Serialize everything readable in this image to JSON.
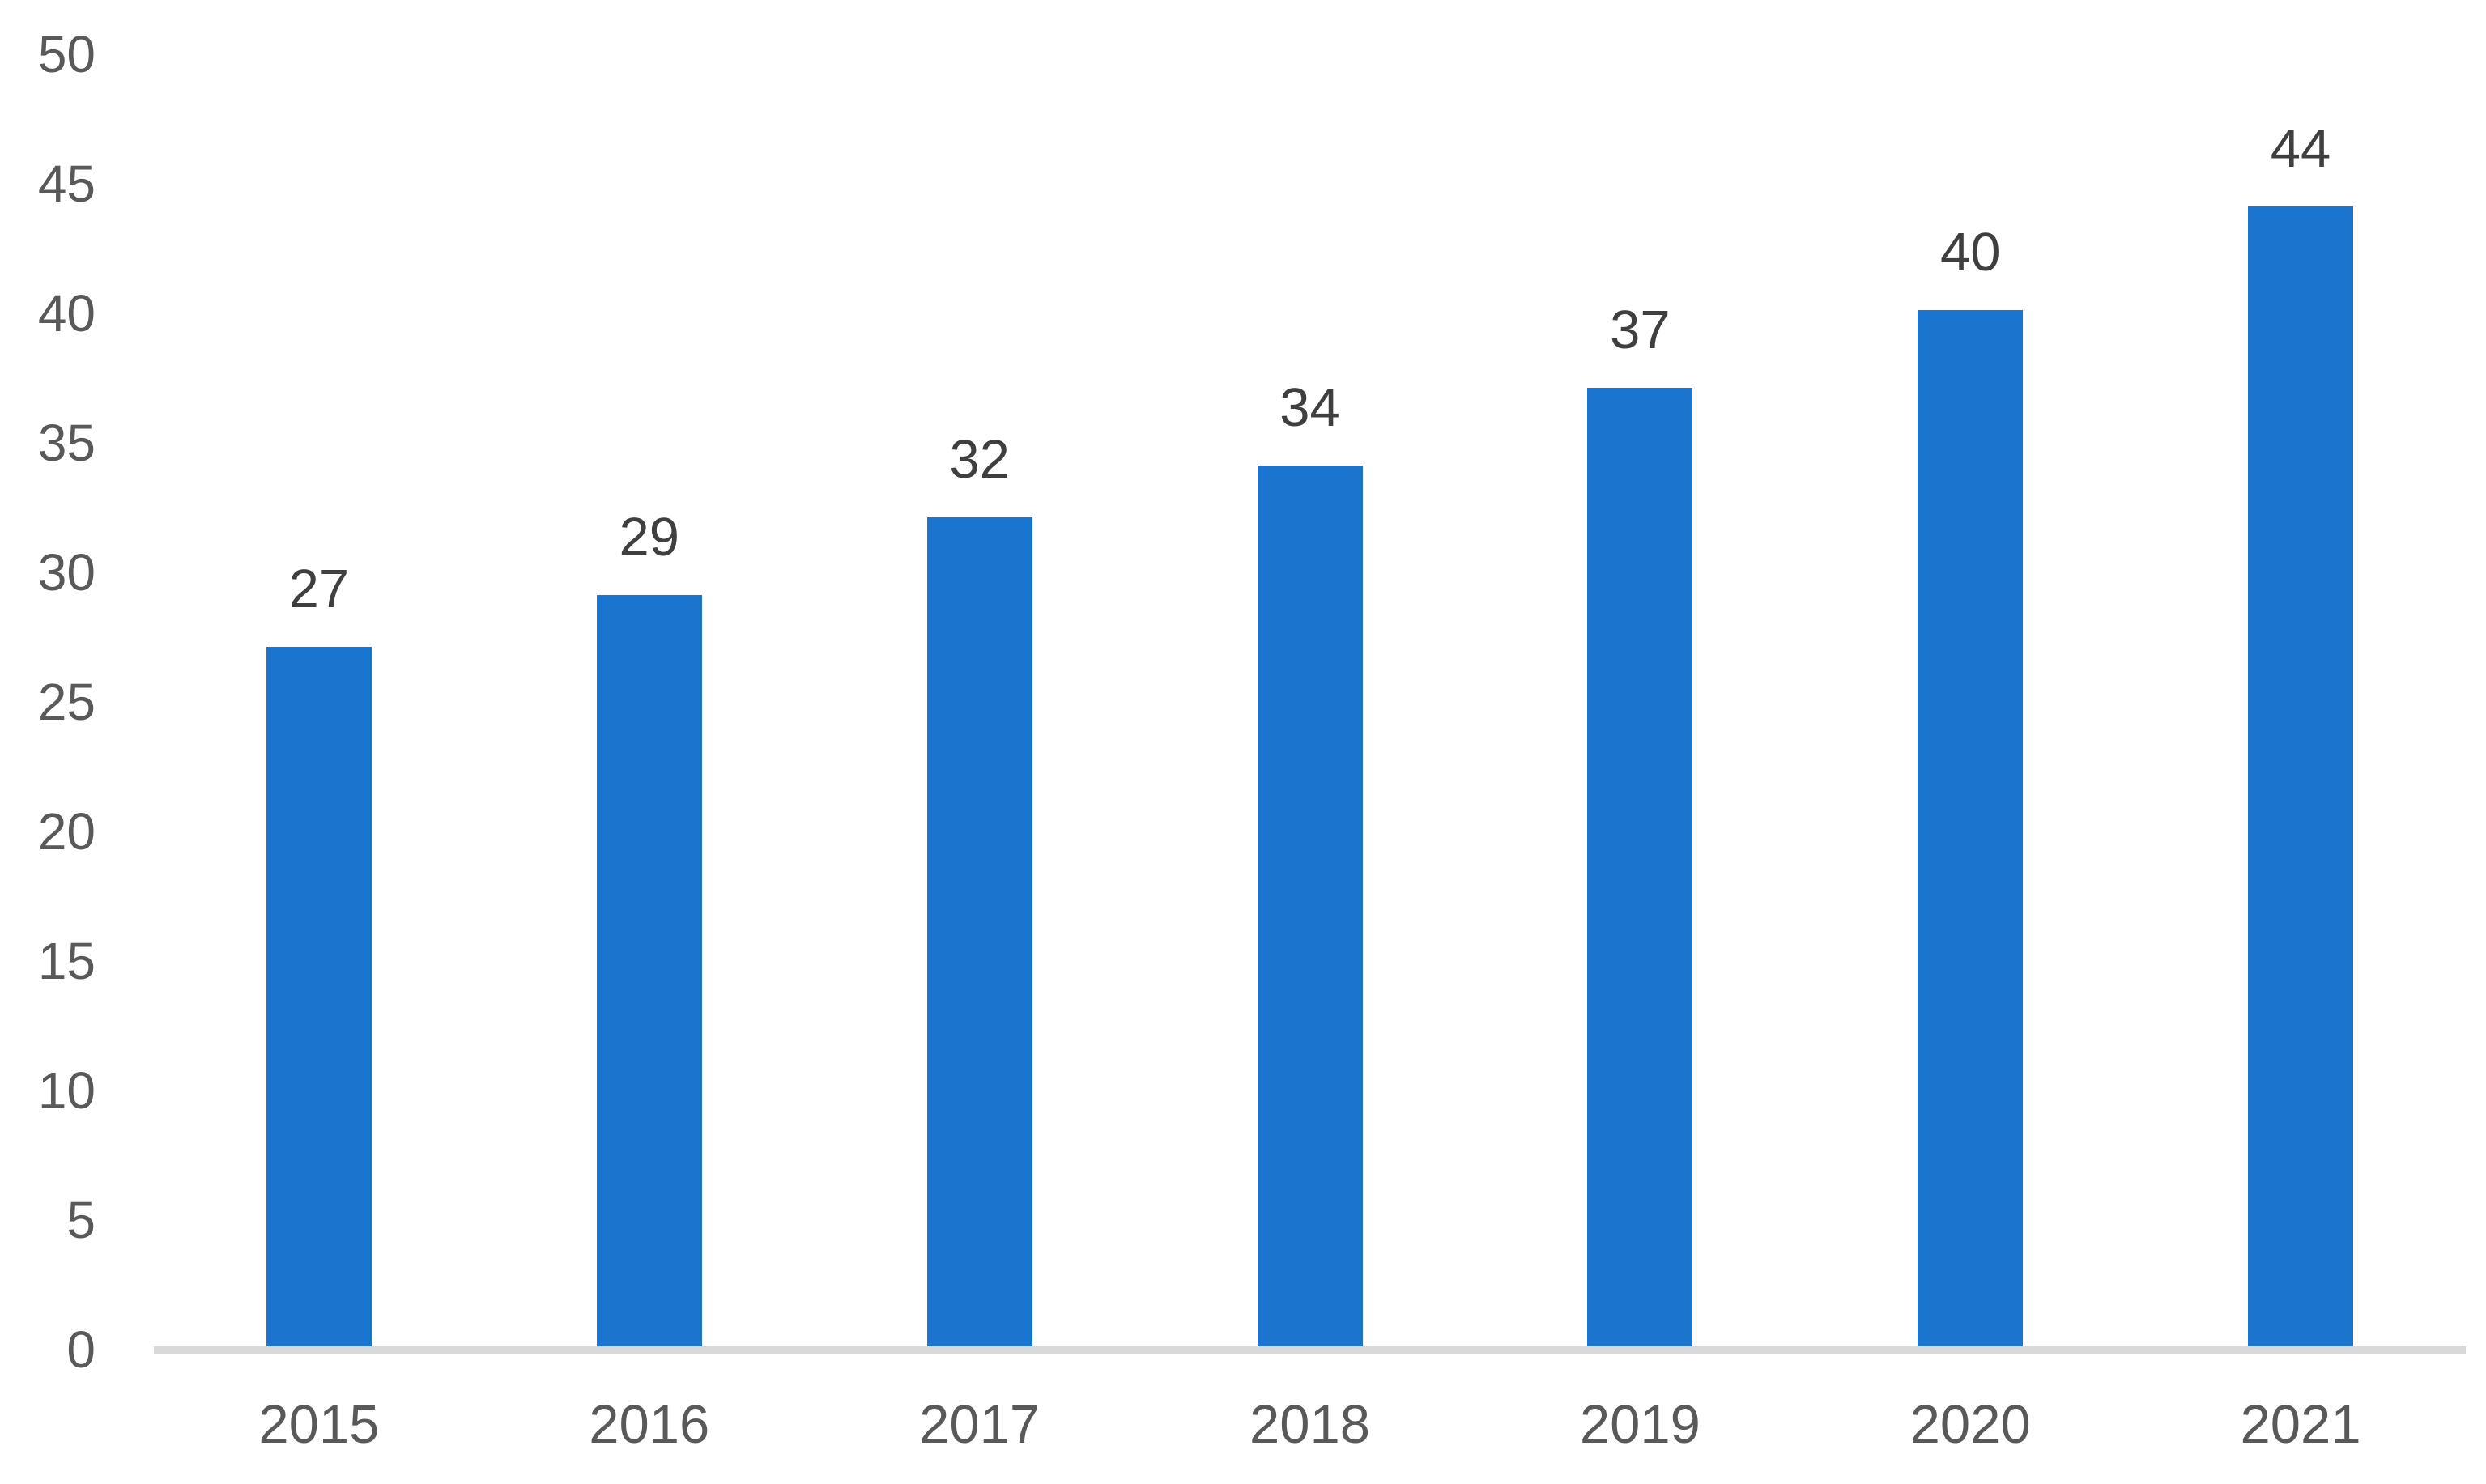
{
  "chart_data": {
    "type": "bar",
    "title": "",
    "xlabel": "",
    "ylabel": "",
    "categories": [
      "2015",
      "2016",
      "2017",
      "2018",
      "2019",
      "2020",
      "2021"
    ],
    "values": [
      27,
      29,
      32,
      34,
      37,
      40,
      44
    ],
    "data_labels": [
      "27",
      "29",
      "32",
      "34",
      "37",
      "40",
      "44"
    ],
    "yticks": [
      0,
      5,
      10,
      15,
      20,
      25,
      30,
      35,
      40,
      45,
      50
    ],
    "ytick_labels": [
      "0",
      "5",
      "10",
      "15",
      "20",
      "25",
      "30",
      "35",
      "40",
      "45",
      "50"
    ],
    "ylim": [
      0,
      50
    ],
    "grid": false,
    "legend_position": "none",
    "colors": {
      "bar": "#1B74CE",
      "data_label": "#3F3F3F",
      "tick_label": "#595959",
      "axis_line": "#D9D9D9",
      "background": "#FFFFFF"
    }
  }
}
